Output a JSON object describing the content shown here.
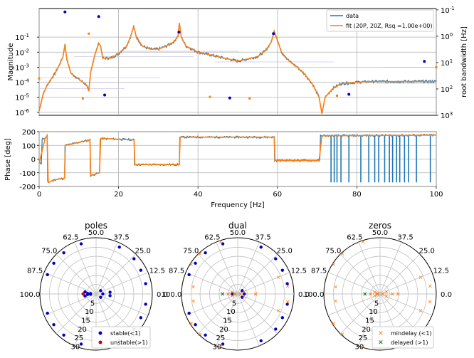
{
  "chart_data": [
    {
      "type": "line",
      "panel": "magnitude",
      "ylabel": "Magnitude",
      "ylabel_right": "root bandwidth [Hz]",
      "yscale": "log",
      "xlim": [
        0,
        100
      ],
      "ylim_log10": [
        -6.2,
        0.9
      ],
      "yticks": [
        "10^-6",
        "10^-5",
        "10^-4",
        "10^-3",
        "10^-2",
        "10^-1"
      ],
      "yticks_right": [
        "10^-1",
        "10^0",
        "10^1",
        "10^2",
        "10^3"
      ],
      "grid": true,
      "legend": "top-right",
      "series": [
        {
          "name": "data",
          "color": "#1f77b4"
        },
        {
          "name": "fit (20P, 20Z, Rsq =1.00e+00)",
          "color": "#ff7f0e"
        }
      ],
      "x": [
        0,
        1,
        2,
        3,
        4,
        5,
        6,
        6.5,
        7,
        8,
        10,
        12,
        12.5,
        13,
        14,
        15,
        15.5,
        16,
        18,
        20,
        22,
        23,
        23.8,
        24.5,
        26,
        28,
        30,
        32,
        34,
        35,
        35.3,
        35.8,
        37,
        40,
        45,
        50,
        55,
        57,
        58.5,
        59.2,
        60,
        61,
        63,
        65,
        67,
        69,
        70.5,
        71.2,
        72,
        74,
        76,
        80,
        85,
        90,
        95,
        100
      ],
      "y_log10": [
        -5.9,
        -4.8,
        -4.2,
        -3.8,
        -3.4,
        -2.9,
        -2.3,
        -1.5,
        -2.5,
        -3.4,
        -3.8,
        -4.2,
        -4.6,
        -3.3,
        -2.2,
        -1.4,
        -1.6,
        -2.4,
        -2.4,
        -2.1,
        -1.6,
        -1.0,
        -0.3,
        -1.0,
        -1.6,
        -1.8,
        -1.8,
        -1.6,
        -1.3,
        -0.9,
        -0.05,
        -1.0,
        -1.6,
        -2.0,
        -2.3,
        -2.6,
        -2.3,
        -1.9,
        -1.3,
        -0.6,
        -1.2,
        -2.0,
        -2.6,
        -3.0,
        -3.5,
        -4.2,
        -5.0,
        -6.1,
        -5.0,
        -4.4,
        -4.1,
        -4.0,
        -3.95,
        -3.95,
        -3.95,
        -3.95
      ],
      "poles_x": [
        0,
        6.5,
        15.5,
        23.8,
        35.3,
        59.2,
        71.2,
        100
      ],
      "poles_bw": [
        0.55,
        0.75,
        0.65,
        0.45,
        0.4,
        0.5,
        0.55,
        0.7
      ],
      "bandwidth_points_blue": [
        [
          6.5,
          0.12
        ],
        [
          15,
          0.18
        ],
        [
          16.5,
          170
        ],
        [
          35.2,
          0.7
        ],
        [
          48,
          220
        ],
        [
          59,
          0.8
        ],
        [
          78,
          160
        ],
        [
          97,
          9
        ]
      ],
      "bandwidth_points_orange": [
        [
          0,
          40
        ],
        [
          12.5,
          0.8
        ],
        [
          11,
          230
        ],
        [
          43,
          200
        ],
        [
          53,
          230
        ],
        [
          75,
          180
        ],
        [
          100,
          15
        ]
      ]
    },
    {
      "type": "line",
      "panel": "phase",
      "ylabel": "Phase [deg]",
      "xlabel": "Frequency [Hz]",
      "xlim": [
        0,
        100
      ],
      "ylim": [
        -200,
        200
      ],
      "xticks": [
        0,
        20,
        40,
        60,
        80,
        100
      ],
      "yticks": [
        -200,
        -100,
        0,
        100,
        200
      ],
      "grid": true,
      "x": [
        0,
        1.5,
        2,
        2.3,
        4,
        6.4,
        6.6,
        12.8,
        13,
        15.2,
        15.5,
        23.9,
        24.1,
        35.3,
        35.5,
        59.2,
        59.4,
        70.5,
        71.2,
        100
      ],
      "y": [
        -30,
        150,
        170,
        -170,
        -150,
        -140,
        100,
        140,
        -120,
        -100,
        150,
        140,
        -40,
        -40,
        160,
        160,
        -10,
        -10,
        170,
        175
      ],
      "spikes_x": [
        73.5,
        74.3,
        75,
        76,
        78,
        81,
        83,
        84.5,
        85.5,
        87,
        88.2,
        89,
        90,
        90.8,
        92,
        93,
        95,
        98.5
      ]
    },
    {
      "type": "scatter",
      "panel": "polar",
      "title": "poles",
      "angle_ticks": [
        "0.0",
        "12.5",
        "25.0",
        "37.5",
        "50.0",
        "62.5",
        "75.0",
        "87.5",
        "100.0"
      ],
      "radial_ticks": [
        "5",
        "10",
        "15",
        "20",
        "25",
        "30"
      ],
      "legend": [
        {
          "label": "stable(<1)",
          "color": "#0000cc",
          "marker": "dot"
        },
        {
          "label": "unstable(>1)",
          "color": "#cc0000",
          "marker": "dot"
        }
      ],
      "series": [
        {
          "name": "stable(<1)",
          "color": "#0000cc",
          "marker": "dot",
          "points": [
            [
              6.5,
              0.9
            ],
            [
              15.5,
              0.9
            ],
            [
              23.8,
              0.92
            ],
            [
              35.3,
              0.93
            ],
            [
              59.2,
              0.93
            ],
            [
              71.2,
              0.93
            ],
            [
              80,
              0.93
            ],
            [
              88,
              0.93
            ],
            [
              98,
              0.1
            ],
            [
              98,
              0.15
            ],
            [
              100,
              0.1
            ],
            [
              0,
              0.12
            ],
            [
              4,
              0.25
            ],
            [
              20,
              0.1
            ],
            [
              94,
              0.2
            ]
          ]
        },
        {
          "name": "unstable(>1)",
          "color": "#cc0000",
          "marker": "dot",
          "points": [
            [
              100,
              0.23
            ]
          ]
        }
      ]
    },
    {
      "type": "scatter",
      "panel": "polar",
      "title": "dual",
      "angle_ticks": [
        "0.0",
        "12.5",
        "25.0",
        "37.5",
        "50.0",
        "62.5",
        "75.0",
        "87.5",
        "100.0"
      ],
      "radial_ticks": [
        "5",
        "10",
        "15",
        "20",
        "25",
        "30"
      ],
      "series": [
        {
          "name": "poles",
          "color": "#0000cc",
          "marker": "dot",
          "points": [
            [
              6.5,
              0.9
            ],
            [
              15.5,
              0.9
            ],
            [
              23.8,
              0.92
            ],
            [
              35.3,
              0.93
            ],
            [
              59.2,
              0.93
            ],
            [
              71.2,
              0.93
            ],
            [
              80,
              0.93
            ],
            [
              88,
              0.93
            ],
            [
              98,
              0.1
            ],
            [
              0,
              0.12
            ],
            [
              20,
              0.1
            ]
          ]
        },
        {
          "name": "zeros",
          "color": "#ff7f0e",
          "marker": "x",
          "points": [
            [
              12.5,
              0.78
            ],
            [
              60,
              0.98
            ],
            [
              74,
              0.98
            ],
            [
              82,
              0.98
            ],
            [
              95,
              0.8
            ],
            [
              5,
              0.9
            ],
            [
              0,
              0.32
            ],
            [
              0,
              0.05
            ],
            [
              100,
              0.17
            ],
            [
              90,
              0.1
            ],
            [
              97,
              0.05
            ],
            [
              10,
              0.12
            ]
          ]
        },
        {
          "name": "delayed",
          "color": "#006400",
          "marker": "x",
          "points": [
            [
              100,
              0.27
            ]
          ]
        }
      ]
    },
    {
      "type": "scatter",
      "panel": "polar",
      "title": "zeros",
      "angle_ticks": [
        "0.0",
        "12.5",
        "25.0",
        "37.5",
        "50.0",
        "62.5",
        "75.0",
        "87.5",
        "100.0"
      ],
      "radial_ticks": [
        "5",
        "10",
        "15",
        "20",
        "25",
        "30"
      ],
      "legend": [
        {
          "label": "mindelay (<1)",
          "color": "#ff7f0e",
          "marker": "x"
        },
        {
          "label": "delayed (>1)",
          "color": "#006400",
          "marker": "x"
        }
      ],
      "series": [
        {
          "name": "mindelay (<1)",
          "color": "#ff7f0e",
          "marker": "x",
          "points": [
            [
              12.5,
              0.78
            ],
            [
              60,
              0.98
            ],
            [
              74,
              0.98
            ],
            [
              82,
              0.98
            ],
            [
              95,
              0.8
            ],
            [
              5,
              0.9
            ],
            [
              0,
              0.32
            ],
            [
              0,
              0.05
            ],
            [
              100,
              0.17
            ],
            [
              90,
              0.1
            ],
            [
              97,
              0.05
            ],
            [
              10,
              0.12
            ],
            [
              0,
              0.22
            ],
            [
              100,
              0.05
            ]
          ]
        },
        {
          "name": "delayed (>1)",
          "color": "#006400",
          "marker": "x",
          "points": [
            [
              100,
              0.27
            ]
          ]
        }
      ]
    }
  ]
}
